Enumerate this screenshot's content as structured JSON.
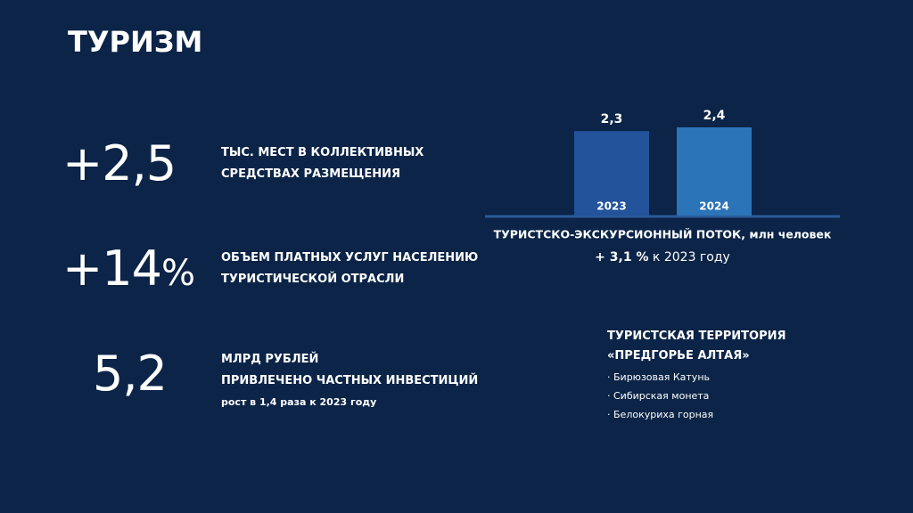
{
  "title": "ТУРИЗМ",
  "stats": [
    {
      "number": "+2,5",
      "lines": [
        "ТЫС. МЕСТ  В КОЛЛЕКТИВНЫХ",
        "СРЕДСТВАХ РАЗМЕЩЕНИЯ"
      ]
    },
    {
      "number": "+14",
      "unit": "%",
      "lines": [
        "ОБЪЕМ ПЛАТНЫХ УСЛУГ НАСЕЛЕНИЮ",
        "ТУРИСТИЧЕСКОЙ ОТРАСЛИ"
      ]
    },
    {
      "number": "5,2",
      "lines": [
        "МЛРД РУБЛЕЙ",
        "ПРИВЛЕЧЕНО ЧАСТНЫХ ИНВЕСТИЦИЙ"
      ],
      "note": [
        "рост ",
        "в 1,4 раза",
        " к 2023 году"
      ]
    }
  ],
  "chart_data": {
    "type": "bar",
    "categories": [
      "2023",
      "2024"
    ],
    "values": [
      2.3,
      2.4
    ],
    "value_labels": [
      "2,3",
      "2,4"
    ],
    "colors": [
      "#23539b",
      "#2c74b8"
    ],
    "ylim": [
      0,
      2.4
    ],
    "title": "ТУРИСТСКО-ЭКСКУРСИОННЫЙ ПОТОК, млн человек",
    "subtitle": [
      "+ 3,1 %",
      " к 2023 году"
    ]
  },
  "territory": {
    "title": [
      "ТУРИСТСКАЯ  ТЕРРИТОРИЯ",
      "«ПРЕДГОРЬЕ АЛТАЯ»"
    ],
    "items": [
      "Бирюзовая Катунь",
      "Сибирская монета",
      "Белокуриха горная"
    ]
  }
}
